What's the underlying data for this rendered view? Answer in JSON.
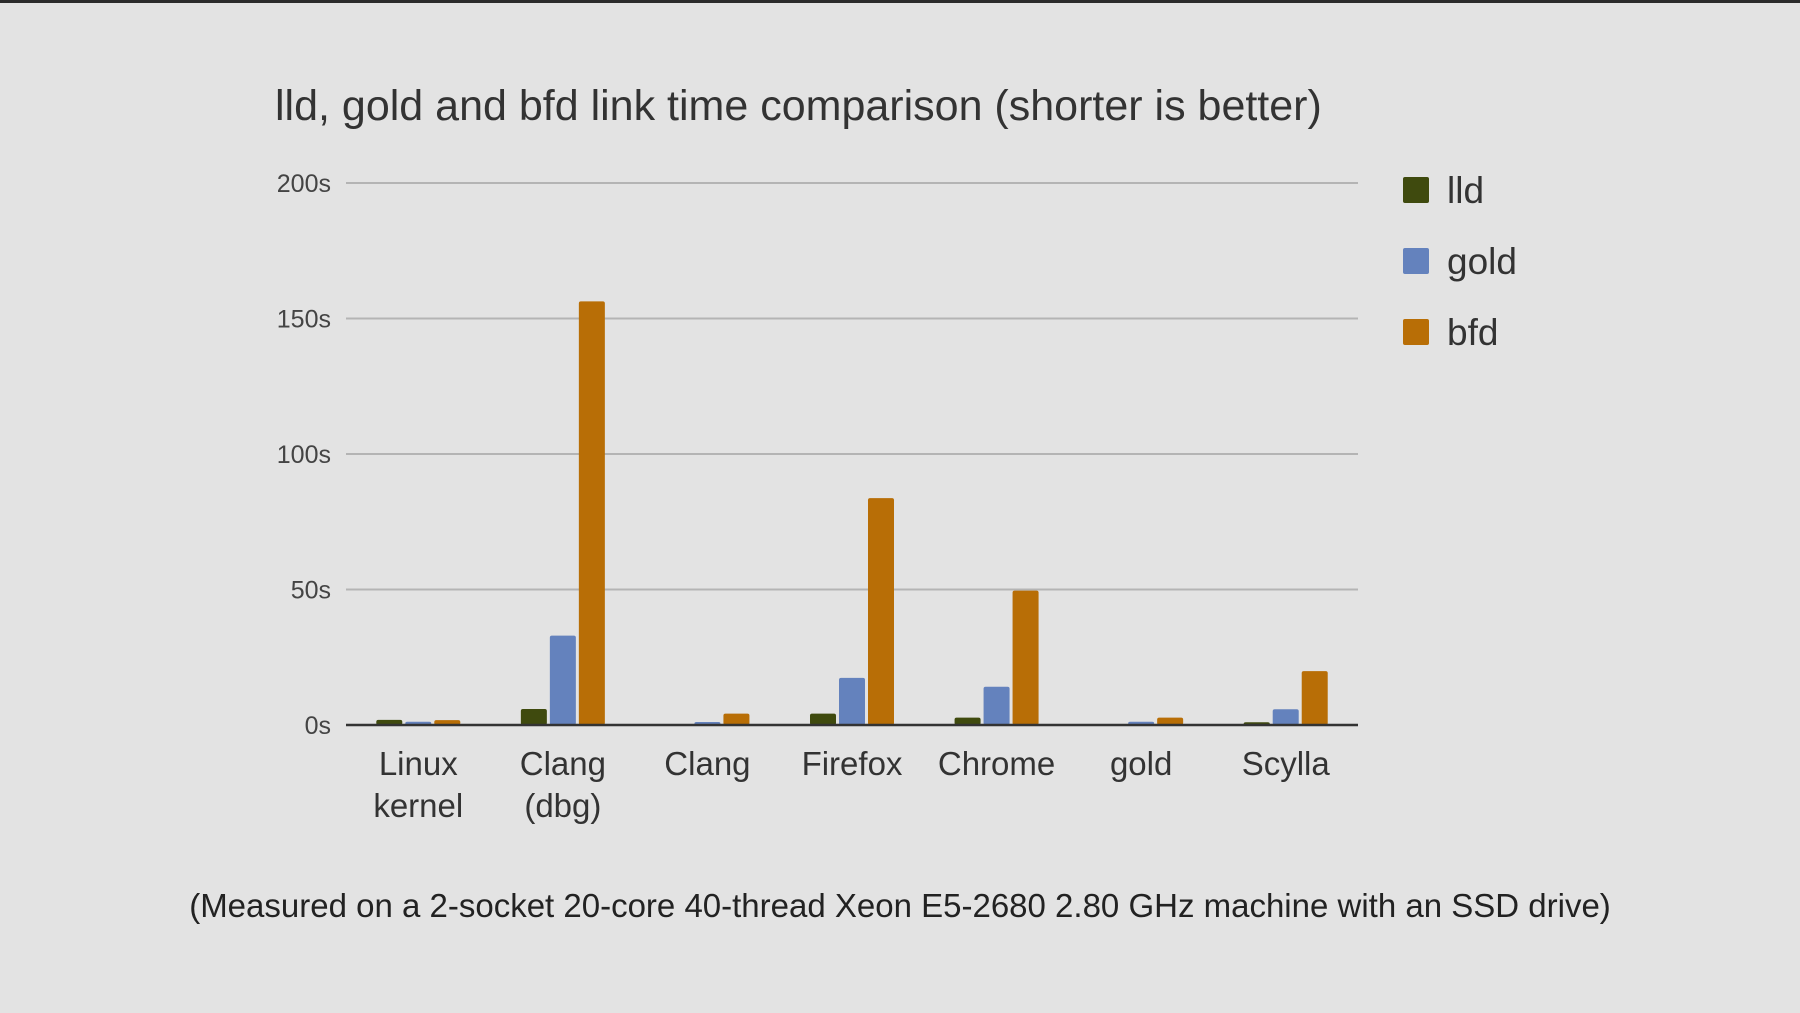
{
  "chart_data": {
    "type": "bar",
    "title": "lld, gold and bfd link time comparison (shorter is better)",
    "xlabel": "",
    "ylabel": "",
    "ylim": [
      0,
      200
    ],
    "yticks": [
      0,
      50,
      100,
      150,
      200
    ],
    "ytick_labels": [
      "0s",
      "50s",
      "100s",
      "150s",
      "200s"
    ],
    "categories": [
      [
        "Linux",
        "kernel"
      ],
      [
        "Clang",
        "(dbg)"
      ],
      [
        "Clang"
      ],
      [
        "Firefox"
      ],
      [
        "Chrome"
      ],
      [
        "gold"
      ],
      [
        "Scylla"
      ]
    ],
    "series": [
      {
        "name": "lld",
        "color": "#3f4a0e",
        "values": [
          1.9,
          5.9,
          0.3,
          4.2,
          2.7,
          0.3,
          1.0
        ]
      },
      {
        "name": "gold",
        "color": "#6482bd",
        "values": [
          1.2,
          33.0,
          1.1,
          17.4,
          14.1,
          1.2,
          5.8
        ]
      },
      {
        "name": "bfd",
        "color": "#b86e06",
        "values": [
          1.8,
          156.3,
          4.2,
          83.7,
          49.6,
          2.7,
          19.9
        ]
      }
    ],
    "grid": true,
    "legend_position": "right"
  },
  "caption": "(Measured on a 2-socket 20-core 40-thread Xeon E5-2680 2.80 GHz machine with an SSD drive)"
}
